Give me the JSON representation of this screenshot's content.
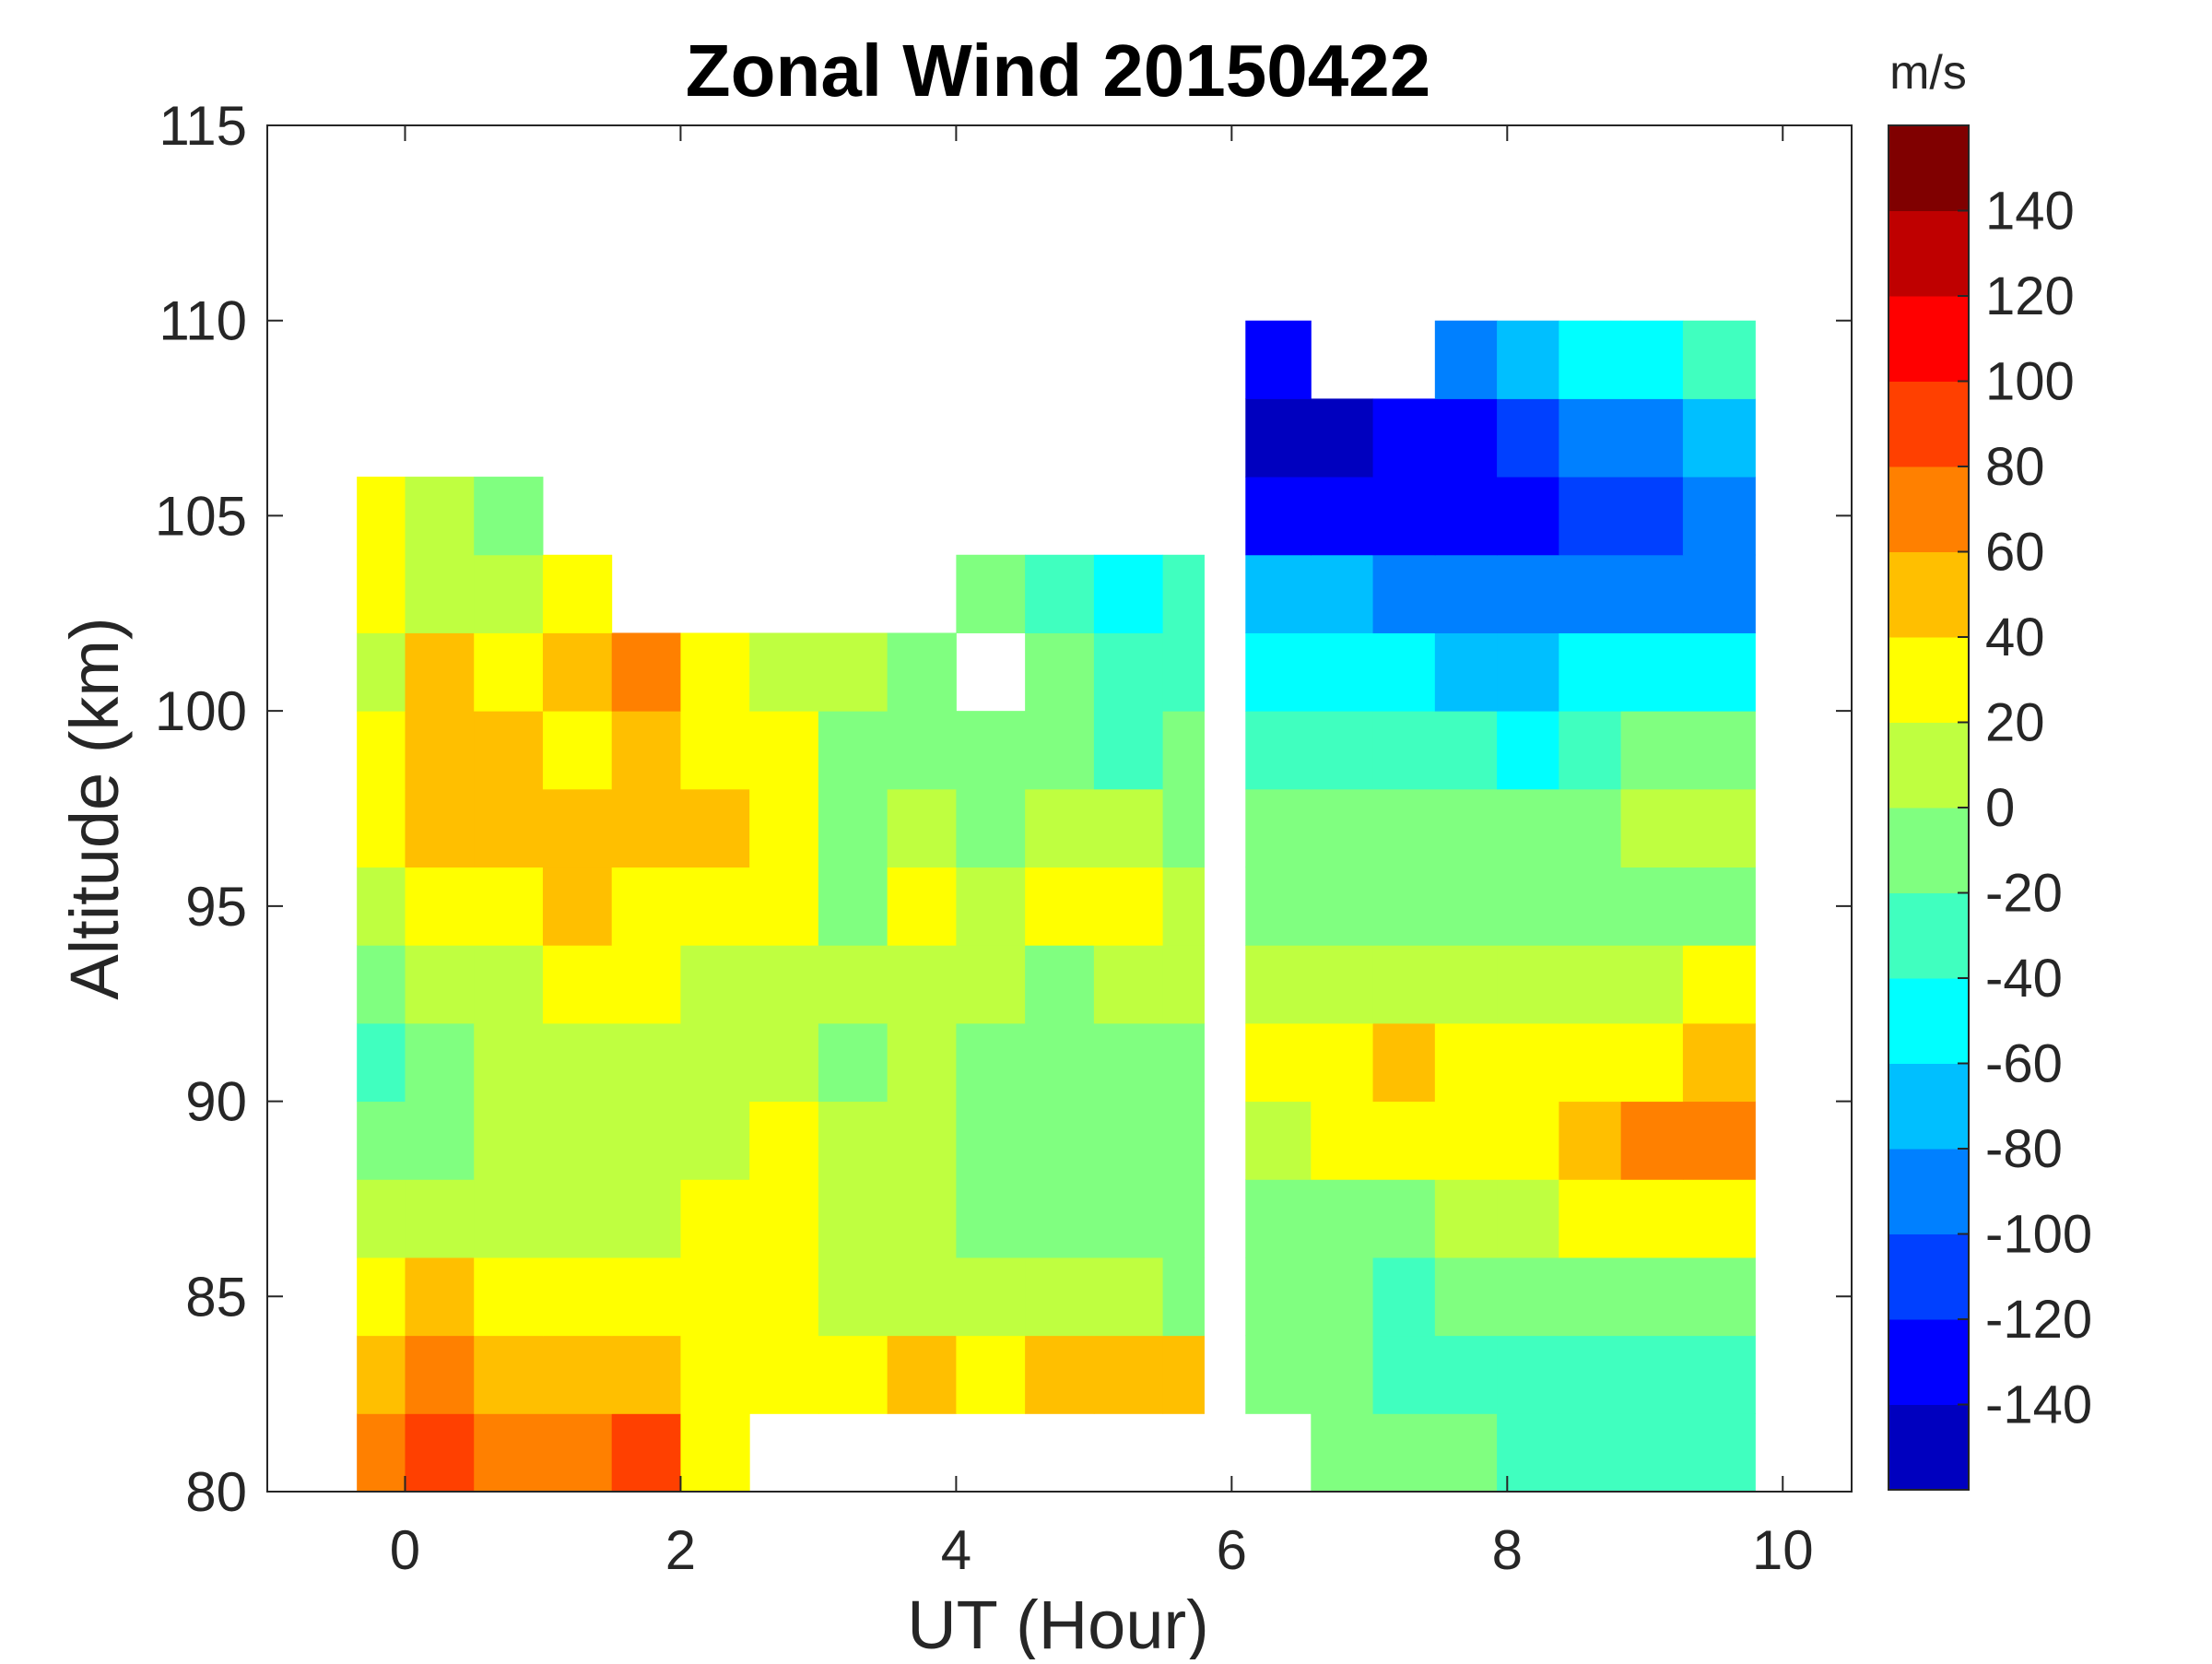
{
  "chart_data": {
    "type": "heatmap",
    "title": "Zonal Wind 20150422",
    "xlabel": "UT (Hour)",
    "ylabel": "Altitude (km)",
    "xlim": [
      -1,
      10.5
    ],
    "ylim": [
      80,
      115
    ],
    "xticks": [
      "0",
      "2",
      "4",
      "6",
      "8",
      "10"
    ],
    "xtick_values": [
      0,
      2,
      4,
      6,
      8,
      10
    ],
    "yticks": [
      "80",
      "85",
      "90",
      "95",
      "100",
      "105",
      "110",
      "115"
    ],
    "ytick_values": [
      80,
      85,
      90,
      95,
      100,
      105,
      110,
      115
    ],
    "colorbar": {
      "label": "m/s",
      "range": [
        -160,
        160
      ],
      "step": 20,
      "ticks": [
        "-140",
        "-120",
        "-100",
        "-80",
        "-60",
        "-40",
        "-20",
        "0",
        "20",
        "40",
        "60",
        "80",
        "100",
        "120",
        "140"
      ],
      "tick_values": [
        -140,
        -120,
        -100,
        -80,
        -60,
        -40,
        -20,
        0,
        20,
        40,
        60,
        80,
        100,
        120,
        140
      ],
      "colors": [
        "#0000BF",
        "#0000FF",
        "#0040FF",
        "#0080FF",
        "#00BFFF",
        "#00FFFF",
        "#40FFBF",
        "#80FF80",
        "#BFFF40",
        "#FFFF00",
        "#FFBF00",
        "#FF8000",
        "#FF4000",
        "#FF0000",
        "#BF0000",
        "#800000"
      ]
    },
    "altitudes": [
      81,
      83,
      85,
      87,
      89,
      91,
      93,
      95,
      97,
      99,
      101,
      103,
      105,
      107,
      109
    ],
    "altitude_step": 2,
    "blocks": [
      {
        "x_start": -0.35,
        "x_end": 5.8,
        "x": [
          -0.25,
          0.25,
          0.75,
          1.25,
          1.75,
          2.25,
          2.75,
          3.25,
          3.75,
          4.25,
          4.75,
          5.25,
          5.75
        ],
        "values": [
          [
            70,
            80,
            60,
            60,
            80,
            30,
            null,
            null,
            null,
            null,
            null,
            null,
            null
          ],
          [
            50,
            60,
            50,
            40,
            40,
            30,
            20,
            20,
            40,
            20,
            50,
            50,
            50
          ],
          [
            30,
            40,
            30,
            20,
            30,
            20,
            20,
            10,
            10,
            0,
            0,
            10,
            -10
          ],
          [
            10,
            10,
            0,
            10,
            10,
            20,
            30,
            10,
            10,
            -10,
            -10,
            -10,
            -20
          ],
          [
            -20,
            -10,
            0,
            0,
            0,
            10,
            20,
            0,
            10,
            -10,
            -20,
            -10,
            -20
          ],
          [
            -30,
            -20,
            0,
            10,
            10,
            0,
            10,
            -10,
            0,
            -20,
            -20,
            -10,
            -10
          ],
          [
            -20,
            0,
            10,
            20,
            20,
            10,
            10,
            0,
            10,
            0,
            -10,
            10,
            10
          ],
          [
            0,
            20,
            30,
            40,
            30,
            30,
            30,
            -10,
            20,
            10,
            20,
            20,
            0
          ],
          [
            20,
            40,
            50,
            50,
            50,
            40,
            30,
            -10,
            0,
            -10,
            10,
            0,
            -10
          ],
          [
            20,
            40,
            40,
            30,
            40,
            30,
            20,
            -20,
            -10,
            -20,
            -20,
            -40,
            -20
          ],
          [
            10,
            40,
            30,
            40,
            60,
            20,
            10,
            0,
            -10,
            null,
            -20,
            -30,
            -40
          ],
          [
            20,
            10,
            0,
            30,
            null,
            null,
            null,
            null,
            null,
            -10,
            -30,
            -50,
            -40
          ],
          [
            20,
            0,
            -10,
            null,
            null,
            null,
            null,
            null,
            null,
            null,
            null,
            null,
            null
          ],
          [
            null,
            null,
            null,
            null,
            null,
            null,
            null,
            null,
            null,
            null,
            null,
            null,
            null
          ],
          [
            null,
            null,
            null,
            null,
            null,
            null,
            null,
            null,
            null,
            null,
            null,
            null,
            null
          ]
        ]
      },
      {
        "x_start": 6.1,
        "x_end": 9.8,
        "x": [
          6.35,
          6.8,
          7.25,
          7.7,
          8.15,
          8.6,
          9.05,
          9.5
        ],
        "values": [
          [
            null,
            -20,
            -20,
            -20,
            -30,
            -40,
            -40,
            -30
          ],
          [
            -10,
            -20,
            -30,
            -30,
            -30,
            -40,
            -40,
            -40
          ],
          [
            -20,
            -20,
            -30,
            -20,
            -20,
            -10,
            -10,
            -10
          ],
          [
            -20,
            -10,
            -10,
            0,
            10,
            20,
            30,
            30
          ],
          [
            10,
            20,
            20,
            30,
            30,
            40,
            60,
            60
          ],
          [
            20,
            20,
            40,
            30,
            20,
            20,
            30,
            40
          ],
          [
            0,
            10,
            10,
            10,
            10,
            10,
            10,
            20
          ],
          [
            -10,
            -10,
            -10,
            -10,
            -10,
            -20,
            -20,
            -10
          ],
          [
            -10,
            -10,
            -10,
            -10,
            -20,
            -10,
            0,
            0
          ],
          [
            -30,
            -30,
            -30,
            -30,
            -50,
            -40,
            -20,
            -20
          ],
          [
            -60,
            -60,
            -60,
            -70,
            -70,
            -60,
            -60,
            -60
          ],
          [
            -80,
            -80,
            -90,
            -100,
            -100,
            -100,
            -90,
            -90
          ],
          [
            -140,
            -140,
            -130,
            -130,
            -130,
            -120,
            -110,
            -100
          ],
          [
            -150,
            -150,
            -140,
            -130,
            -120,
            -100,
            -90,
            -80
          ],
          [
            -140,
            null,
            null,
            -90,
            -80,
            -60,
            -60,
            -40
          ]
        ]
      }
    ]
  }
}
